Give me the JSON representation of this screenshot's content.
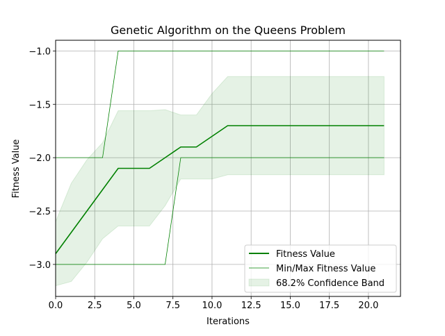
{
  "chart_data": {
    "type": "line",
    "title": "Genetic Algorithm on the Queens Problem",
    "xlabel": "Iterations",
    "ylabel": "Fitness Value",
    "xlim": [
      0,
      22.05
    ],
    "ylim": [
      -3.3,
      -0.9
    ],
    "xticks": [
      0.0,
      2.5,
      5.0,
      7.5,
      10.0,
      12.5,
      15.0,
      17.5,
      20.0
    ],
    "xtick_labels": [
      "0.0",
      "2.5",
      "5.0",
      "7.5",
      "10.0",
      "12.5",
      "15.0",
      "17.5",
      "20.0"
    ],
    "yticks": [
      -1.0,
      -1.5,
      -2.0,
      -2.5,
      -3.0
    ],
    "ytick_labels": [
      "−1.0",
      "−1.5",
      "−2.0",
      "−2.5",
      "−3.0"
    ],
    "grid": true,
    "legend_position": "lower-right",
    "x": [
      0,
      1,
      2,
      3,
      4,
      5,
      6,
      7,
      8,
      9,
      10,
      11,
      12,
      13,
      14,
      15,
      16,
      17,
      18,
      19,
      20,
      21
    ],
    "series": [
      {
        "name": "Fitness Value",
        "style": "thick",
        "color": "#008000",
        "values": [
          -2.9,
          -2.7,
          -2.5,
          -2.3,
          -2.1,
          -2.1,
          -2.1,
          -2.0,
          -1.9,
          -1.9,
          -1.8,
          -1.7,
          -1.7,
          -1.7,
          -1.7,
          -1.7,
          -1.7,
          -1.7,
          -1.7,
          -1.7,
          -1.7,
          -1.7
        ]
      },
      {
        "name": "Min/Max Fitness Value",
        "style": "thin",
        "color": "#008000",
        "min": [
          -3,
          -3,
          -3,
          -3,
          -3,
          -3,
          -3,
          -3,
          -2,
          -2,
          -2,
          -2,
          -2,
          -2,
          -2,
          -2,
          -2,
          -2,
          -2,
          -2,
          -2,
          -2
        ],
        "max": [
          -2,
          -2,
          -2,
          -2,
          -1,
          -1,
          -1,
          -1,
          -1,
          -1,
          -1,
          -1,
          -1,
          -1,
          -1,
          -1,
          -1,
          -1,
          -1,
          -1,
          -1,
          -1
        ]
      }
    ],
    "band": {
      "name": "68.2% Confidence Band",
      "color": "#008000",
      "opacity": 0.1,
      "lower": [
        -3.2,
        -3.16,
        -2.98,
        -2.76,
        -2.64,
        -2.64,
        -2.64,
        -2.45,
        -2.2,
        -2.2,
        -2.2,
        -2.16,
        -2.16,
        -2.16,
        -2.16,
        -2.16,
        -2.16,
        -2.16,
        -2.16,
        -2.16,
        -2.16,
        -2.16
      ],
      "upper": [
        -2.6,
        -2.24,
        -2.02,
        -1.86,
        -1.56,
        -1.56,
        -1.56,
        -1.55,
        -1.6,
        -1.6,
        -1.4,
        -1.24,
        -1.24,
        -1.24,
        -1.24,
        -1.24,
        -1.24,
        -1.24,
        -1.24,
        -1.24,
        -1.24,
        -1.24
      ]
    }
  }
}
